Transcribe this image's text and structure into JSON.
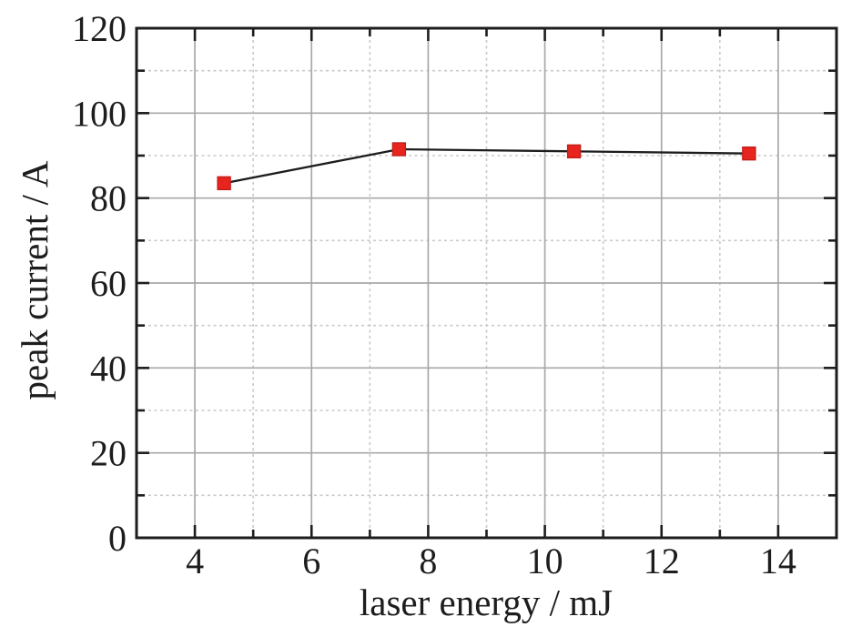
{
  "figure": {
    "background": "#ffffff"
  },
  "chart_data": {
    "type": "line",
    "title": "",
    "xlabel": "laser energy / mJ",
    "ylabel": "peak current / A",
    "x": [
      4.5,
      7.5,
      10.5,
      13.5
    ],
    "series": [
      {
        "name": "peak current",
        "marker": "square",
        "values": [
          83.5,
          91.5,
          91.0,
          90.5
        ]
      }
    ],
    "xlim": [
      3,
      15
    ],
    "ylim": [
      0,
      120
    ],
    "x_major_ticks": [
      4,
      6,
      8,
      10,
      12,
      14
    ],
    "x_minor_ticks": [
      5,
      7,
      9,
      11,
      13
    ],
    "y_major_ticks": [
      0,
      20,
      40,
      60,
      80,
      100,
      120
    ],
    "y_minor_ticks": [
      10,
      30,
      50,
      70,
      90,
      110
    ],
    "x_tick_labels": [
      "4",
      "6",
      "8",
      "10",
      "12",
      "14"
    ],
    "y_tick_labels": [
      "0",
      "20",
      "40",
      "60",
      "80",
      "100",
      "120"
    ],
    "grid": {
      "major": "solid",
      "minor": "dashed",
      "on": true
    },
    "legend": "none",
    "marker_size_px": 14,
    "colors": {
      "frame": "#1d1d1d",
      "text": "#1d1d1d",
      "line": "#1d1d1d",
      "major_grid": "#a8a8a8",
      "minor_grid": "#c9c9c9",
      "marker_fill": "#e8241f",
      "marker_edge": "#c41e18",
      "background": "#ffffff"
    }
  }
}
